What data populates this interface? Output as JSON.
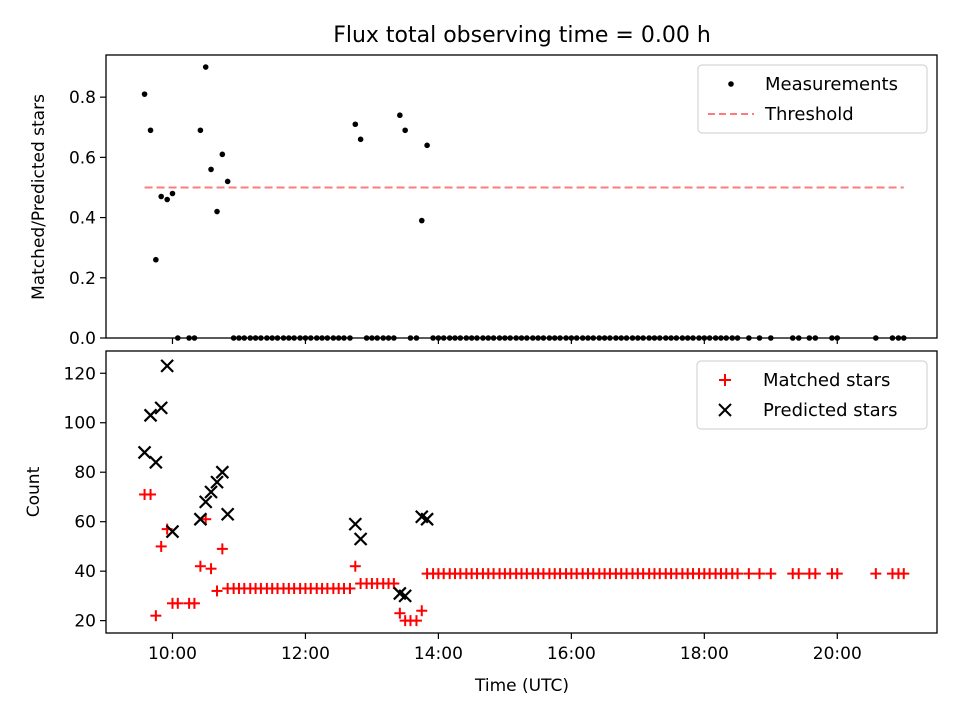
{
  "chart_data": [
    {
      "type": "scatter",
      "title": "Flux total observing time = 0.00 h",
      "xlabel": "",
      "ylabel": "Matched/Predicted stars",
      "xlim": [
        9.0,
        21.5
      ],
      "ylim": [
        0.0,
        0.94
      ],
      "yticks": [
        0.0,
        0.2,
        0.4,
        0.6,
        0.8
      ],
      "ytick_labels": [
        "0.0",
        "0.2",
        "0.4",
        "0.6",
        "0.8"
      ],
      "grid": false,
      "legend_position": "top-right",
      "series": [
        {
          "name": "Measurements",
          "kind": "scatter",
          "marker": "dot",
          "color": "#000000",
          "points": [
            [
              9.58,
              0.81
            ],
            [
              9.67,
              0.69
            ],
            [
              9.75,
              0.26
            ],
            [
              9.83,
              0.47
            ],
            [
              9.92,
              0.46
            ],
            [
              10.0,
              0.48
            ],
            [
              10.08,
              0.0
            ],
            [
              10.25,
              0.0
            ],
            [
              10.33,
              0.0
            ],
            [
              10.42,
              0.69
            ],
            [
              10.5,
              0.9
            ],
            [
              10.58,
              0.56
            ],
            [
              10.67,
              0.42
            ],
            [
              10.75,
              0.61
            ],
            [
              10.83,
              0.52
            ],
            [
              10.92,
              0.0
            ],
            [
              11.0,
              0.0
            ],
            [
              11.08,
              0.0
            ],
            [
              11.17,
              0.0
            ],
            [
              11.25,
              0.0
            ],
            [
              11.33,
              0.0
            ],
            [
              11.42,
              0.0
            ],
            [
              11.5,
              0.0
            ],
            [
              11.58,
              0.0
            ],
            [
              11.67,
              0.0
            ],
            [
              11.75,
              0.0
            ],
            [
              11.83,
              0.0
            ],
            [
              11.92,
              0.0
            ],
            [
              12.0,
              0.0
            ],
            [
              12.08,
              0.0
            ],
            [
              12.17,
              0.0
            ],
            [
              12.25,
              0.0
            ],
            [
              12.33,
              0.0
            ],
            [
              12.42,
              0.0
            ],
            [
              12.5,
              0.0
            ],
            [
              12.58,
              0.0
            ],
            [
              12.67,
              0.0
            ],
            [
              12.75,
              0.71
            ],
            [
              12.83,
              0.66
            ],
            [
              12.92,
              0.0
            ],
            [
              13.0,
              0.0
            ],
            [
              13.08,
              0.0
            ],
            [
              13.17,
              0.0
            ],
            [
              13.25,
              0.0
            ],
            [
              13.33,
              0.0
            ],
            [
              13.42,
              0.74
            ],
            [
              13.5,
              0.69
            ],
            [
              13.58,
              0.0
            ],
            [
              13.67,
              0.0
            ],
            [
              13.75,
              0.39
            ],
            [
              13.83,
              0.64
            ],
            [
              13.92,
              0.0
            ],
            [
              14.0,
              0.0
            ],
            [
              14.08,
              0.0
            ],
            [
              14.17,
              0.0
            ],
            [
              14.25,
              0.0
            ],
            [
              14.33,
              0.0
            ],
            [
              14.42,
              0.0
            ],
            [
              14.5,
              0.0
            ],
            [
              14.58,
              0.0
            ],
            [
              14.67,
              0.0
            ],
            [
              14.75,
              0.0
            ],
            [
              14.83,
              0.0
            ],
            [
              14.92,
              0.0
            ],
            [
              15.0,
              0.0
            ],
            [
              15.08,
              0.0
            ],
            [
              15.17,
              0.0
            ],
            [
              15.25,
              0.0
            ],
            [
              15.33,
              0.0
            ],
            [
              15.42,
              0.0
            ],
            [
              15.5,
              0.0
            ],
            [
              15.58,
              0.0
            ],
            [
              15.67,
              0.0
            ],
            [
              15.75,
              0.0
            ],
            [
              15.83,
              0.0
            ],
            [
              15.92,
              0.0
            ],
            [
              16.0,
              0.0
            ],
            [
              16.08,
              0.0
            ],
            [
              16.17,
              0.0
            ],
            [
              16.25,
              0.0
            ],
            [
              16.33,
              0.0
            ],
            [
              16.42,
              0.0
            ],
            [
              16.5,
              0.0
            ],
            [
              16.58,
              0.0
            ],
            [
              16.67,
              0.0
            ],
            [
              16.75,
              0.0
            ],
            [
              16.83,
              0.0
            ],
            [
              16.92,
              0.0
            ],
            [
              17.0,
              0.0
            ],
            [
              17.08,
              0.0
            ],
            [
              17.17,
              0.0
            ],
            [
              17.25,
              0.0
            ],
            [
              17.33,
              0.0
            ],
            [
              17.42,
              0.0
            ],
            [
              17.5,
              0.0
            ],
            [
              17.58,
              0.0
            ],
            [
              17.67,
              0.0
            ],
            [
              17.75,
              0.0
            ],
            [
              17.83,
              0.0
            ],
            [
              17.92,
              0.0
            ],
            [
              18.0,
              0.0
            ],
            [
              18.08,
              0.0
            ],
            [
              18.17,
              0.0
            ],
            [
              18.25,
              0.0
            ],
            [
              18.33,
              0.0
            ],
            [
              18.42,
              0.0
            ],
            [
              18.5,
              0.0
            ],
            [
              18.67,
              0.0
            ],
            [
              18.83,
              0.0
            ],
            [
              19.0,
              0.0
            ],
            [
              19.33,
              0.0
            ],
            [
              19.42,
              0.0
            ],
            [
              19.58,
              0.0
            ],
            [
              19.67,
              0.0
            ],
            [
              19.92,
              0.0
            ],
            [
              20.0,
              0.0
            ],
            [
              20.58,
              0.0
            ],
            [
              20.83,
              0.0
            ],
            [
              20.92,
              0.0
            ],
            [
              21.0,
              0.0
            ]
          ]
        },
        {
          "name": "Threshold",
          "kind": "dashed-line",
          "color": "#ff7b7b",
          "points": [
            [
              9.58,
              0.5
            ],
            [
              21.0,
              0.5
            ]
          ]
        }
      ]
    },
    {
      "type": "scatter",
      "title": "",
      "xlabel": "Time (UTC)",
      "ylabel": "Count",
      "xlim": [
        9.0,
        21.5
      ],
      "ylim": [
        15,
        129
      ],
      "xticks": [
        10,
        12,
        14,
        16,
        18,
        20
      ],
      "xtick_labels": [
        "10:00",
        "12:00",
        "14:00",
        "16:00",
        "18:00",
        "20:00"
      ],
      "yticks": [
        20,
        40,
        60,
        80,
        100,
        120
      ],
      "ytick_labels": [
        "20",
        "40",
        "60",
        "80",
        "100",
        "120"
      ],
      "grid": false,
      "legend_position": "top-right",
      "series": [
        {
          "name": "Matched stars",
          "kind": "scatter",
          "marker": "plus",
          "color": "#ff0000",
          "points": [
            [
              9.58,
              71
            ],
            [
              9.67,
              71
            ],
            [
              9.75,
              22
            ],
            [
              9.83,
              50
            ],
            [
              9.92,
              57
            ],
            [
              10.0,
              27
            ],
            [
              10.08,
              27
            ],
            [
              10.25,
              27
            ],
            [
              10.33,
              27
            ],
            [
              10.42,
              42
            ],
            [
              10.5,
              61
            ],
            [
              10.58,
              41
            ],
            [
              10.67,
              32
            ],
            [
              10.75,
              49
            ],
            [
              10.83,
              33
            ],
            [
              10.92,
              33
            ],
            [
              11.0,
              33
            ],
            [
              11.08,
              33
            ],
            [
              11.17,
              33
            ],
            [
              11.25,
              33
            ],
            [
              11.33,
              33
            ],
            [
              11.42,
              33
            ],
            [
              11.5,
              33
            ],
            [
              11.58,
              33
            ],
            [
              11.67,
              33
            ],
            [
              11.75,
              33
            ],
            [
              11.83,
              33
            ],
            [
              11.92,
              33
            ],
            [
              12.0,
              33
            ],
            [
              12.08,
              33
            ],
            [
              12.17,
              33
            ],
            [
              12.25,
              33
            ],
            [
              12.33,
              33
            ],
            [
              12.42,
              33
            ],
            [
              12.5,
              33
            ],
            [
              12.58,
              33
            ],
            [
              12.67,
              33
            ],
            [
              12.75,
              42
            ],
            [
              12.83,
              35
            ],
            [
              12.92,
              35
            ],
            [
              13.0,
              35
            ],
            [
              13.08,
              35
            ],
            [
              13.17,
              35
            ],
            [
              13.25,
              35
            ],
            [
              13.33,
              35
            ],
            [
              13.42,
              23
            ],
            [
              13.5,
              20
            ],
            [
              13.58,
              20
            ],
            [
              13.67,
              20
            ],
            [
              13.75,
              24
            ],
            [
              13.83,
              39
            ],
            [
              13.92,
              39
            ],
            [
              14.0,
              39
            ],
            [
              14.08,
              39
            ],
            [
              14.17,
              39
            ],
            [
              14.25,
              39
            ],
            [
              14.33,
              39
            ],
            [
              14.42,
              39
            ],
            [
              14.5,
              39
            ],
            [
              14.58,
              39
            ],
            [
              14.67,
              39
            ],
            [
              14.75,
              39
            ],
            [
              14.83,
              39
            ],
            [
              14.92,
              39
            ],
            [
              15.0,
              39
            ],
            [
              15.08,
              39
            ],
            [
              15.17,
              39
            ],
            [
              15.25,
              39
            ],
            [
              15.33,
              39
            ],
            [
              15.42,
              39
            ],
            [
              15.5,
              39
            ],
            [
              15.58,
              39
            ],
            [
              15.67,
              39
            ],
            [
              15.75,
              39
            ],
            [
              15.83,
              39
            ],
            [
              15.92,
              39
            ],
            [
              16.0,
              39
            ],
            [
              16.08,
              39
            ],
            [
              16.17,
              39
            ],
            [
              16.25,
              39
            ],
            [
              16.33,
              39
            ],
            [
              16.42,
              39
            ],
            [
              16.5,
              39
            ],
            [
              16.58,
              39
            ],
            [
              16.67,
              39
            ],
            [
              16.75,
              39
            ],
            [
              16.83,
              39
            ],
            [
              16.92,
              39
            ],
            [
              17.0,
              39
            ],
            [
              17.08,
              39
            ],
            [
              17.17,
              39
            ],
            [
              17.25,
              39
            ],
            [
              17.33,
              39
            ],
            [
              17.42,
              39
            ],
            [
              17.5,
              39
            ],
            [
              17.58,
              39
            ],
            [
              17.67,
              39
            ],
            [
              17.75,
              39
            ],
            [
              17.83,
              39
            ],
            [
              17.92,
              39
            ],
            [
              18.0,
              39
            ],
            [
              18.08,
              39
            ],
            [
              18.17,
              39
            ],
            [
              18.25,
              39
            ],
            [
              18.33,
              39
            ],
            [
              18.42,
              39
            ],
            [
              18.5,
              39
            ],
            [
              18.67,
              39
            ],
            [
              18.83,
              39
            ],
            [
              19.0,
              39
            ],
            [
              19.33,
              39
            ],
            [
              19.42,
              39
            ],
            [
              19.58,
              39
            ],
            [
              19.67,
              39
            ],
            [
              19.92,
              39
            ],
            [
              20.0,
              39
            ],
            [
              20.58,
              39
            ],
            [
              20.83,
              39
            ],
            [
              20.92,
              39
            ],
            [
              21.0,
              39
            ]
          ]
        },
        {
          "name": "Predicted stars",
          "kind": "scatter",
          "marker": "x",
          "color": "#000000",
          "points": [
            [
              9.58,
              88
            ],
            [
              9.67,
              103
            ],
            [
              9.75,
              84
            ],
            [
              9.83,
              106
            ],
            [
              9.92,
              123
            ],
            [
              10.0,
              56
            ],
            [
              10.42,
              61
            ],
            [
              10.5,
              68
            ],
            [
              10.58,
              72
            ],
            [
              10.67,
              76
            ],
            [
              10.75,
              80
            ],
            [
              10.83,
              63
            ],
            [
              12.75,
              59
            ],
            [
              12.83,
              53
            ],
            [
              13.42,
              31
            ],
            [
              13.5,
              30
            ],
            [
              13.75,
              62
            ],
            [
              13.83,
              61
            ]
          ]
        }
      ]
    }
  ]
}
